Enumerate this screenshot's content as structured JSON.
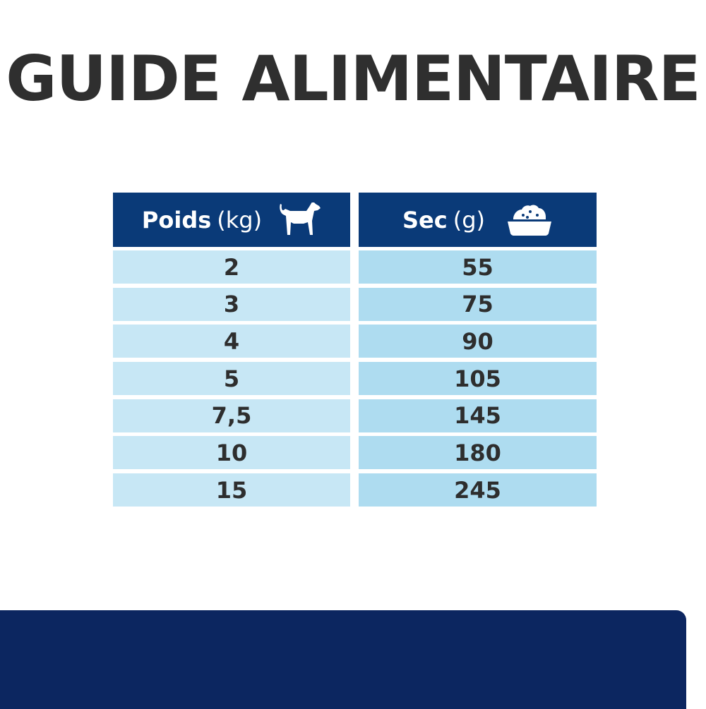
{
  "title": "GUIDE ALIMENTAIRE",
  "table": {
    "headers": [
      {
        "label": "Poids",
        "unit": "(kg)",
        "icon": "dog-icon"
      },
      {
        "label": "Sec",
        "unit": "(g)",
        "icon": "food-bowl-icon"
      }
    ],
    "rows": [
      {
        "weight": "2",
        "dry": "55"
      },
      {
        "weight": "3",
        "dry": "75"
      },
      {
        "weight": "4",
        "dry": "90"
      },
      {
        "weight": "5",
        "dry": "105"
      },
      {
        "weight": "7,5",
        "dry": "145"
      },
      {
        "weight": "10",
        "dry": "180"
      },
      {
        "weight": "15",
        "dry": "245"
      }
    ]
  },
  "colors": {
    "header": "#0a3a78",
    "col1": "#c7e7f5",
    "col2": "#aedcf0",
    "footer": "#0c2660",
    "title": "#2f2f2f"
  }
}
